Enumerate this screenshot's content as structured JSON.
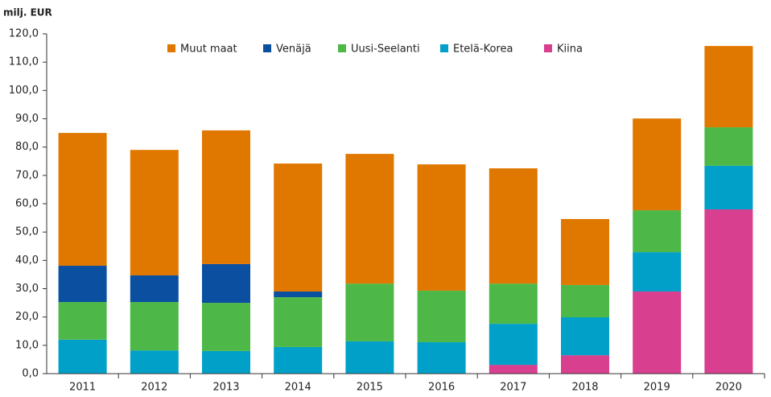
{
  "chart_data": {
    "type": "stacked-bar",
    "y_label": "milj. EUR",
    "categories": [
      "2011",
      "2012",
      "2013",
      "2014",
      "2015",
      "2016",
      "2017",
      "2018",
      "2019",
      "2020"
    ],
    "series": [
      {
        "name": "Muut maat",
        "color": "#e07800",
        "values": [
          46.9,
          44.3,
          47.2,
          45.2,
          45.8,
          44.6,
          40.7,
          23.3,
          32.4,
          28.7
        ]
      },
      {
        "name": "Venäjä",
        "color": "#0a4fa0",
        "values": [
          12.8,
          9.4,
          13.7,
          2.0,
          0,
          0,
          0,
          0,
          0,
          0
        ]
      },
      {
        "name": "Uusi-Seelanti",
        "color": "#4db848",
        "values": [
          13.3,
          17.1,
          17.0,
          17.6,
          20.4,
          18.2,
          14.2,
          11.4,
          14.8,
          13.6
        ]
      },
      {
        "name": "Etelä-Korea",
        "color": "#00a0c8",
        "values": [
          12.0,
          8.2,
          8.0,
          9.4,
          11.4,
          11.1,
          14.5,
          13.4,
          13.9,
          15.4
        ]
      },
      {
        "name": "Kiina",
        "color": "#d93f8f",
        "values": [
          0,
          0,
          0,
          0,
          0,
          0,
          3.1,
          6.5,
          29.0,
          58.0
        ]
      }
    ],
    "ylim": [
      0,
      120
    ],
    "yticks": [
      {
        "value": 0,
        "label": "0,0"
      },
      {
        "value": 10,
        "label": "10,0"
      },
      {
        "value": 20,
        "label": "20,0"
      },
      {
        "value": 30,
        "label": "30,0"
      },
      {
        "value": 40,
        "label": "40,0"
      },
      {
        "value": 50,
        "label": "50,0"
      },
      {
        "value": 60,
        "label": "60,0"
      },
      {
        "value": 70,
        "label": "70,0"
      },
      {
        "value": 80,
        "label": "80,0"
      },
      {
        "value": 90,
        "label": "90,0"
      },
      {
        "value": 100,
        "label": "100,0"
      },
      {
        "value": 110,
        "label": "110,0"
      },
      {
        "value": 120,
        "label": "120,0"
      }
    ],
    "grid": false
  }
}
